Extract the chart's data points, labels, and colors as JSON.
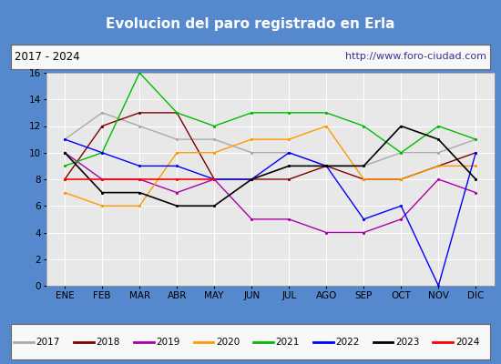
{
  "title": "Evolucion del paro registrado en Erla",
  "subtitle_left": "2017 - 2024",
  "subtitle_right": "http://www.foro-ciudad.com",
  "months": [
    "ENE",
    "FEB",
    "MAR",
    "ABR",
    "MAY",
    "JUN",
    "JUL",
    "AGO",
    "SEP",
    "OCT",
    "NOV",
    "DIC"
  ],
  "series": {
    "2017": {
      "values": [
        11,
        13,
        12,
        11,
        11,
        10,
        10,
        9,
        9,
        10,
        10,
        11
      ],
      "color": "#aaaaaa",
      "lw": 1.0
    },
    "2018": {
      "values": [
        8,
        12,
        13,
        13,
        8,
        8,
        8,
        9,
        8,
        8,
        9,
        10
      ],
      "color": "#800000",
      "lw": 1.0
    },
    "2019": {
      "values": [
        10,
        8,
        8,
        7,
        8,
        5,
        5,
        4,
        4,
        5,
        8,
        7
      ],
      "color": "#aa00aa",
      "lw": 1.0
    },
    "2020": {
      "values": [
        7,
        6,
        6,
        10,
        10,
        11,
        11,
        12,
        8,
        8,
        9,
        9
      ],
      "color": "#ff9900",
      "lw": 1.0
    },
    "2021": {
      "values": [
        9,
        10,
        16,
        13,
        12,
        13,
        13,
        13,
        12,
        10,
        12,
        11
      ],
      "color": "#00bb00",
      "lw": 1.0
    },
    "2022": {
      "values": [
        11,
        10,
        9,
        9,
        8,
        8,
        10,
        9,
        5,
        6,
        0,
        10
      ],
      "color": "#0000ff",
      "lw": 1.0
    },
    "2023": {
      "values": [
        10,
        7,
        7,
        6,
        6,
        8,
        9,
        9,
        9,
        12,
        11,
        8
      ],
      "color": "#000000",
      "lw": 1.2
    },
    "2024": {
      "values": [
        8,
        8,
        8,
        8,
        8,
        null,
        null,
        null,
        null,
        null,
        null,
        null
      ],
      "color": "#ff0000",
      "lw": 1.2
    }
  },
  "ylim": [
    0,
    16
  ],
  "yticks": [
    0,
    2,
    4,
    6,
    8,
    10,
    12,
    14,
    16
  ],
  "outer_bg": "#5588cc",
  "inner_bg": "#dddddd",
  "plot_bg": "#e8e8e8",
  "title_bg": "#5588cc",
  "title_color": "#ffffff",
  "header_bg": "#f8f8f8",
  "grid_color": "#ffffff",
  "legend_bg": "#f8f8f8",
  "legend_order": [
    "2017",
    "2018",
    "2019",
    "2020",
    "2021",
    "2022",
    "2023",
    "2024"
  ]
}
